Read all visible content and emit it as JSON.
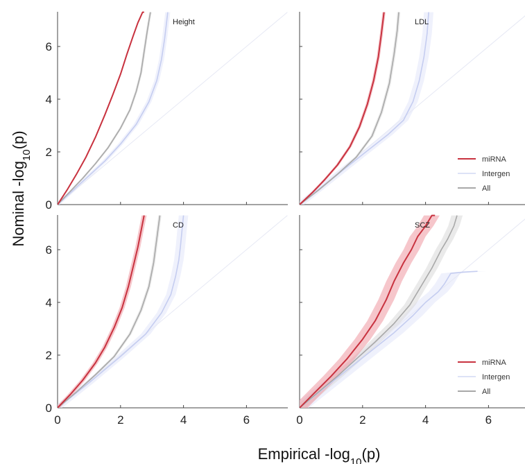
{
  "chart_data": [
    {
      "type": "line",
      "panel_label": "Height",
      "xlim": [
        0,
        7.2
      ],
      "ylim": [
        0,
        7.3
      ],
      "xticks": [],
      "yticks": [
        0,
        2,
        4,
        6
      ],
      "show_legend": false,
      "series": [
        {
          "name": "miRNA",
          "color": "#c8323f",
          "band_color": "#f0a0a8",
          "x": [
            0,
            0.3,
            0.6,
            0.9,
            1.2,
            1.5,
            1.75,
            2.0,
            2.2,
            2.4,
            2.55,
            2.7,
            2.75
          ],
          "y": [
            0,
            0.55,
            1.15,
            1.8,
            2.55,
            3.4,
            4.15,
            4.95,
            5.7,
            6.4,
            6.9,
            7.3,
            7.3
          ],
          "band": 0.02
        },
        {
          "name": "All",
          "color": "#a8a8a8",
          "band_color": "#dcdcdc",
          "x": [
            0,
            0.4,
            0.8,
            1.2,
            1.6,
            2.0,
            2.3,
            2.5,
            2.65,
            2.75,
            2.85,
            2.95
          ],
          "y": [
            0,
            0.5,
            1.0,
            1.55,
            2.15,
            2.9,
            3.6,
            4.3,
            5.0,
            5.8,
            6.6,
            7.3
          ],
          "band": 0.04
        },
        {
          "name": "Intergen",
          "color": "#c5cdf0",
          "band_color": "#e4e8fa",
          "x": [
            0,
            0.5,
            1.0,
            1.5,
            2.0,
            2.5,
            2.9,
            3.15,
            3.3,
            3.4,
            3.5
          ],
          "y": [
            0,
            0.55,
            1.1,
            1.65,
            2.3,
            3.05,
            3.9,
            4.7,
            5.5,
            6.3,
            7.3
          ],
          "band": 0.08
        },
        {
          "name": "",
          "color": "#e6e8f4",
          "x": [
            0,
            7.3
          ],
          "y": [
            0,
            7.3
          ],
          "band": 0
        }
      ]
    },
    {
      "type": "line",
      "panel_label": "LDL",
      "xlim": [
        0,
        7.2
      ],
      "ylim": [
        0,
        7.3
      ],
      "xticks": [],
      "yticks": [],
      "show_legend": true,
      "series": [
        {
          "name": "miRNA",
          "color": "#c8323f",
          "band_color": "#f0a0a8",
          "x": [
            0,
            0.4,
            0.8,
            1.2,
            1.6,
            1.9,
            2.15,
            2.35,
            2.5,
            2.6,
            2.68
          ],
          "y": [
            0,
            0.45,
            0.95,
            1.5,
            2.2,
            2.95,
            3.8,
            4.7,
            5.6,
            6.5,
            7.3
          ],
          "band": 0.05
        },
        {
          "name": "All",
          "color": "#a8a8a8",
          "band_color": "#dcdcdc",
          "x": [
            0,
            0.6,
            1.2,
            1.8,
            2.3,
            2.6,
            2.85,
            3.0,
            3.1,
            3.15
          ],
          "y": [
            0,
            0.55,
            1.15,
            1.8,
            2.6,
            3.5,
            4.6,
            5.7,
            6.6,
            7.3
          ],
          "band": 0.05
        },
        {
          "name": "Intergen",
          "color": "#c5cdf0",
          "band_color": "#e4e8fa",
          "x": [
            0,
            1.0,
            2.0,
            2.8,
            3.3,
            3.6,
            3.8,
            3.95,
            4.05,
            4.1
          ],
          "y": [
            0,
            0.95,
            1.9,
            2.65,
            3.2,
            3.9,
            4.7,
            5.6,
            6.5,
            7.3
          ],
          "band": 0.15
        },
        {
          "name": "",
          "color": "#e6e8f4",
          "x": [
            0,
            7.3
          ],
          "y": [
            0,
            7.3
          ],
          "band": 0
        }
      ]
    },
    {
      "type": "line",
      "panel_label": "CD",
      "xlim": [
        0,
        7.2
      ],
      "ylim": [
        0,
        7.3
      ],
      "xticks": [
        0,
        2,
        4,
        6
      ],
      "yticks": [
        0,
        2,
        4,
        6
      ],
      "show_legend": false,
      "series": [
        {
          "name": "miRNA",
          "color": "#c8323f",
          "band_color": "#f0a0a8",
          "x": [
            0,
            0.4,
            0.8,
            1.2,
            1.5,
            1.8,
            2.05,
            2.25,
            2.4,
            2.55,
            2.65,
            2.75
          ],
          "y": [
            0,
            0.5,
            1.05,
            1.7,
            2.3,
            3.05,
            3.8,
            4.6,
            5.35,
            6.1,
            6.7,
            7.3
          ],
          "band": 0.08
        },
        {
          "name": "All",
          "color": "#a8a8a8",
          "band_color": "#dcdcdc",
          "x": [
            0,
            0.6,
            1.2,
            1.8,
            2.3,
            2.65,
            2.9,
            3.05,
            3.15,
            3.25
          ],
          "y": [
            0,
            0.6,
            1.25,
            1.95,
            2.8,
            3.7,
            4.6,
            5.5,
            6.4,
            7.3
          ],
          "band": 0.05
        },
        {
          "name": "Intergen",
          "color": "#c5cdf0",
          "band_color": "#e4e8fa",
          "x": [
            0,
            1.0,
            2.0,
            2.8,
            3.3,
            3.6,
            3.75,
            3.85,
            3.9,
            3.95,
            4.0
          ],
          "y": [
            0,
            0.95,
            1.95,
            2.8,
            3.6,
            4.3,
            5.0,
            5.6,
            6.1,
            6.7,
            7.3
          ],
          "band": 0.15
        },
        {
          "name": "",
          "color": "#e6e8f4",
          "x": [
            0,
            7.3
          ],
          "y": [
            0,
            7.3
          ],
          "band": 0
        }
      ]
    },
    {
      "type": "line",
      "panel_label": "SCZ",
      "xlim": [
        0,
        7.2
      ],
      "ylim": [
        0,
        7.3
      ],
      "xticks": [
        0,
        2,
        4,
        6
      ],
      "yticks": [],
      "show_legend": true,
      "series": [
        {
          "name": "miRNA",
          "color": "#c8323f",
          "band_color": "#f0a0a8",
          "x": [
            0,
            0.5,
            1.0,
            1.5,
            2.0,
            2.4,
            2.75,
            3.0,
            3.3,
            3.55,
            3.75,
            4.0,
            4.2,
            4.3
          ],
          "y": [
            0,
            0.6,
            1.2,
            1.85,
            2.6,
            3.3,
            4.1,
            4.8,
            5.5,
            6.0,
            6.5,
            6.9,
            7.3,
            7.3
          ],
          "band": 0.25
        },
        {
          "name": "All",
          "color": "#a8a8a8",
          "band_color": "#dcdcdc",
          "x": [
            0,
            0.6,
            1.2,
            1.8,
            2.4,
            3.0,
            3.5,
            3.9,
            4.2,
            4.5,
            4.7,
            4.9,
            5.0
          ],
          "y": [
            0,
            0.6,
            1.2,
            1.85,
            2.5,
            3.2,
            3.9,
            4.7,
            5.3,
            6.0,
            6.4,
            6.9,
            7.3
          ],
          "band": 0.18
        },
        {
          "name": "Intergen",
          "color": "#c5cdf0",
          "band_color": "#e4e8fa",
          "x": [
            0,
            1.0,
            2.0,
            3.0,
            3.6,
            4.0,
            4.4,
            4.6,
            4.8,
            5.2,
            5.65
          ],
          "y": [
            0,
            0.95,
            1.9,
            2.85,
            3.5,
            4.0,
            4.4,
            4.7,
            5.1,
            5.15,
            5.18
          ],
          "band": 0.3
        },
        {
          "name": "",
          "color": "#e6e8f4",
          "x": [
            0,
            7.3
          ],
          "y": [
            0,
            7.3
          ],
          "band": 0
        }
      ]
    }
  ],
  "legend": [
    {
      "name": "miRNA",
      "color": "#c8323f"
    },
    {
      "name": "Intergen",
      "color": "#dde2f6"
    },
    {
      "name": "All",
      "color": "#a8a8a8"
    }
  ],
  "xlabel": {
    "prefix": "Empirical -log",
    "sub": "10",
    "suffix": "(p)"
  },
  "ylabel": {
    "prefix": "Nominal -log",
    "sub": "10",
    "suffix": "(p)"
  }
}
